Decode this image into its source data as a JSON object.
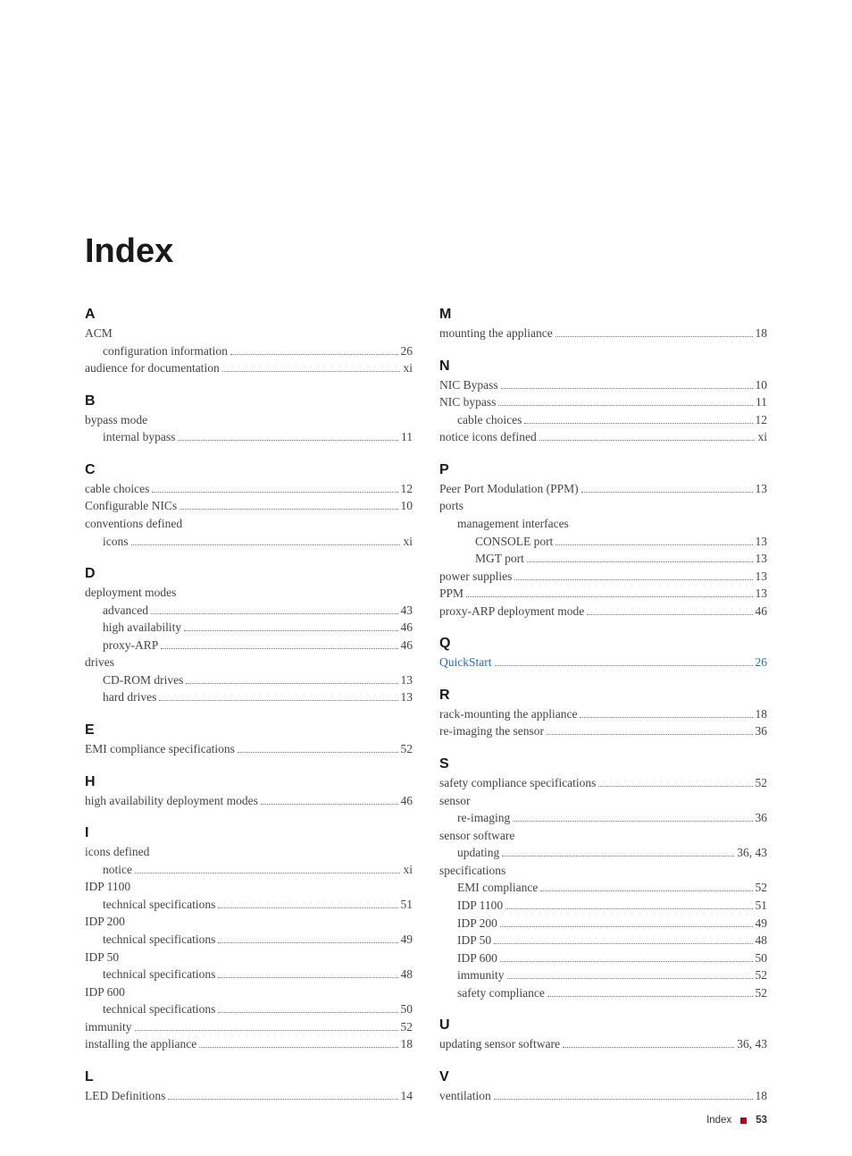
{
  "title": "Index",
  "footer": {
    "label": "Index",
    "page": "53"
  },
  "columns": [
    [
      {
        "letter": "A",
        "items": [
          {
            "text": "ACM",
            "indent": 0
          },
          {
            "text": "configuration information",
            "page": "26",
            "indent": 1
          },
          {
            "text": "audience for documentation",
            "page": "xi",
            "indent": 0
          }
        ]
      },
      {
        "letter": "B",
        "items": [
          {
            "text": "bypass mode",
            "indent": 0
          },
          {
            "text": "internal bypass",
            "page": "11",
            "indent": 1
          }
        ]
      },
      {
        "letter": "C",
        "items": [
          {
            "text": "cable choices",
            "page": "12",
            "indent": 0
          },
          {
            "text": "Configurable NICs",
            "page": "10",
            "indent": 0
          },
          {
            "text": "conventions defined",
            "indent": 0
          },
          {
            "text": "icons",
            "page": "xi",
            "indent": 1
          }
        ]
      },
      {
        "letter": "D",
        "items": [
          {
            "text": "deployment modes",
            "indent": 0
          },
          {
            "text": "advanced",
            "page": "43",
            "indent": 1
          },
          {
            "text": "high availability",
            "page": "46",
            "indent": 1
          },
          {
            "text": "proxy-ARP",
            "page": "46",
            "indent": 1
          },
          {
            "text": "drives",
            "indent": 0
          },
          {
            "text": "CD-ROM drives",
            "page": "13",
            "indent": 1
          },
          {
            "text": "hard drives",
            "page": "13",
            "indent": 1
          }
        ]
      },
      {
        "letter": "E",
        "items": [
          {
            "text": "EMI compliance specifications",
            "page": "52",
            "indent": 0
          }
        ]
      },
      {
        "letter": "H",
        "items": [
          {
            "text": "high availability deployment modes",
            "page": "46",
            "indent": 0
          }
        ]
      },
      {
        "letter": "I",
        "items": [
          {
            "text": "icons defined",
            "indent": 0
          },
          {
            "text": "notice",
            "page": "xi",
            "indent": 1
          },
          {
            "text": "IDP 1100",
            "indent": 0
          },
          {
            "text": "technical specifications",
            "page": "51",
            "indent": 1
          },
          {
            "text": "IDP 200",
            "indent": 0
          },
          {
            "text": "technical specifications",
            "page": "49",
            "indent": 1
          },
          {
            "text": "IDP 50",
            "indent": 0
          },
          {
            "text": "technical specifications",
            "page": "48",
            "indent": 1
          },
          {
            "text": "IDP 600",
            "indent": 0
          },
          {
            "text": "technical specifications",
            "page": "50",
            "indent": 1
          },
          {
            "text": "immunity",
            "page": "52",
            "indent": 0
          },
          {
            "text": "installing the appliance",
            "page": "18",
            "indent": 0
          }
        ]
      },
      {
        "letter": "L",
        "items": [
          {
            "text": "LED Definitions",
            "page": "14",
            "indent": 0
          }
        ]
      }
    ],
    [
      {
        "letter": "M",
        "items": [
          {
            "text": "mounting the appliance",
            "page": "18",
            "indent": 0
          }
        ]
      },
      {
        "letter": "N",
        "items": [
          {
            "text": "NIC Bypass",
            "page": "10",
            "indent": 0
          },
          {
            "text": "NIC bypass",
            "page": "11",
            "indent": 0
          },
          {
            "text": "cable choices",
            "page": "12",
            "indent": 1
          },
          {
            "text": "notice icons defined",
            "page": "xi",
            "indent": 0
          }
        ]
      },
      {
        "letter": "P",
        "items": [
          {
            "text": "Peer Port Modulation (PPM)",
            "page": "13",
            "indent": 0
          },
          {
            "text": "ports",
            "indent": 0
          },
          {
            "text": "management interfaces",
            "indent": 1
          },
          {
            "text": "CONSOLE port",
            "page": "13",
            "indent": 2
          },
          {
            "text": "MGT port",
            "page": "13",
            "indent": 2
          },
          {
            "text": "power supplies",
            "page": "13",
            "indent": 0
          },
          {
            "text": "PPM",
            "page": "13",
            "indent": 0
          },
          {
            "text": "proxy-ARP deployment mode",
            "page": "46",
            "indent": 0
          }
        ]
      },
      {
        "letter": "Q",
        "items": [
          {
            "text": "QuickStart",
            "page": "26",
            "indent": 0,
            "link": true
          }
        ]
      },
      {
        "letter": "R",
        "items": [
          {
            "text": "rack-mounting the appliance",
            "page": "18",
            "indent": 0
          },
          {
            "text": "re-imaging the sensor",
            "page": "36",
            "indent": 0
          }
        ]
      },
      {
        "letter": "S",
        "items": [
          {
            "text": "safety compliance specifications",
            "page": "52",
            "indent": 0
          },
          {
            "text": "sensor",
            "indent": 0
          },
          {
            "text": "re-imaging",
            "page": "36",
            "indent": 1
          },
          {
            "text": "sensor software",
            "indent": 0
          },
          {
            "text": "updating",
            "page": "36, 43",
            "indent": 1
          },
          {
            "text": "specifications",
            "indent": 0
          },
          {
            "text": "EMI compliance",
            "page": "52",
            "indent": 1
          },
          {
            "text": "IDP 1100",
            "page": "51",
            "indent": 1
          },
          {
            "text": "IDP 200",
            "page": "49",
            "indent": 1
          },
          {
            "text": "IDP 50",
            "page": "48",
            "indent": 1
          },
          {
            "text": "IDP 600",
            "page": "50",
            "indent": 1
          },
          {
            "text": "immunity",
            "page": "52",
            "indent": 1
          },
          {
            "text": "safety compliance",
            "page": "52",
            "indent": 1
          }
        ]
      },
      {
        "letter": "U",
        "items": [
          {
            "text": "updating sensor software",
            "page": "36, 43",
            "indent": 0
          }
        ]
      },
      {
        "letter": "V",
        "items": [
          {
            "text": "ventilation",
            "page": "18",
            "indent": 0
          }
        ]
      }
    ]
  ]
}
